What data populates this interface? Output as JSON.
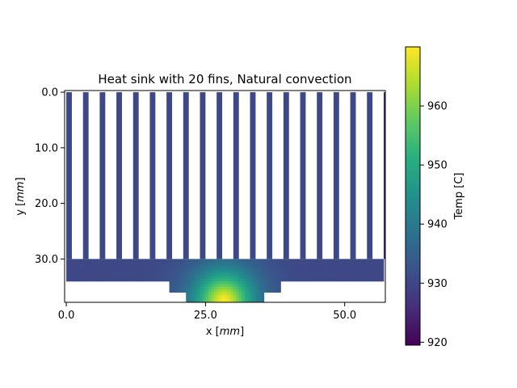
{
  "chart_data": {
    "type": "heatmap",
    "title": "Heat sink with 20 fins, Natural convection",
    "xlabel_prefix": "x [",
    "xlabel_unit": "mm",
    "xlabel_suffix": "]",
    "ylabel_prefix": "y [",
    "ylabel_unit": "mm",
    "ylabel_suffix": "]",
    "xlim": [
      -0.3,
      57.3
    ],
    "ylim": [
      37.8,
      -0.3
    ],
    "y_inverted": true,
    "x_ticks": [
      0.0,
      25.0,
      50.0
    ],
    "x_tick_labels": [
      "0.0",
      "25.0",
      "50.0"
    ],
    "y_ticks": [
      0.0,
      10.0,
      20.0,
      30.0
    ],
    "y_tick_labels": [
      "0.0",
      "10.0",
      "20.0",
      "30.0"
    ],
    "grid": false,
    "colormap": "viridis",
    "colorbar": {
      "label": "Temp [C]",
      "range": [
        919.5,
        970
      ],
      "ticks": [
        920,
        930,
        940,
        950,
        960
      ],
      "tick_labels": [
        "920",
        "930",
        "940",
        "950",
        "960"
      ],
      "position": "right"
    },
    "geometry": {
      "fin_count": 20,
      "fin_width": 1,
      "fin_pitch": 3,
      "fin_y_range": [
        0,
        30
      ],
      "base_x_range": [
        0,
        57
      ],
      "base_y_range": [
        30,
        34
      ],
      "step1_x_range": [
        18.3,
        38.3
      ],
      "step1_y_range": [
        34,
        36
      ],
      "step2_x_range": [
        21.3,
        35.3
      ],
      "step2_y_range": [
        36,
        38
      ]
    },
    "temperature_field": {
      "ambient_region_temp": 930.5,
      "hotspot_center": [
        28.3,
        37.5
      ],
      "hotspot_peak_temp": 970,
      "edge_fin_temp": 926
    }
  }
}
